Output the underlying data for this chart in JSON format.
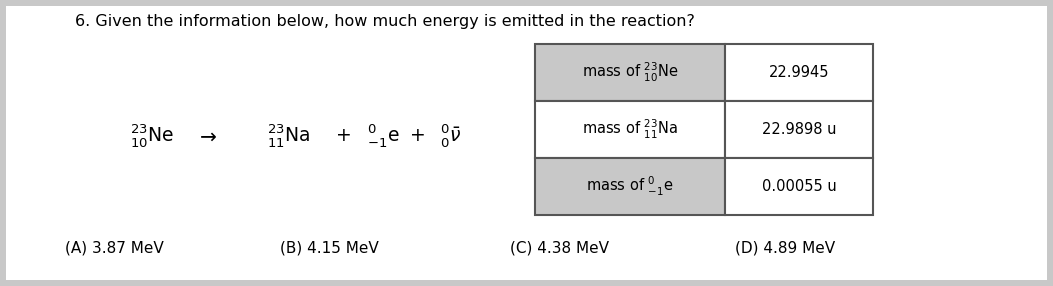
{
  "title": "6. Given the information below, how much energy is emitted in the reaction?",
  "title_fontsize": 11.5,
  "bg_color": "#c8c8c8",
  "panel_color": "#ffffff",
  "table": {
    "rows": [
      {
        "label": "mass of $\\mathregular{^{23}_{10}}$Ne",
        "value": "22.9945"
      },
      {
        "label": "mass of $\\mathregular{^{23}_{11}}$Na",
        "value": "22.9898 u"
      },
      {
        "label": "mass of $\\mathregular{^{0}_{-1}}$e",
        "value": "0.00055 u"
      }
    ],
    "row_colors": [
      "#c8c8c8",
      "#ffffff",
      "#c8c8c8"
    ],
    "value_bg": "#ffffff",
    "border_color": "#555555"
  },
  "choices": [
    "(A) 3.87 MeV",
    "(B) 4.15 MeV",
    "(C) 4.38 MeV",
    "(D) 4.89 MeV"
  ],
  "choices_fontsize": 11,
  "fig_width": 10.53,
  "fig_height": 2.86,
  "dpi": 100
}
